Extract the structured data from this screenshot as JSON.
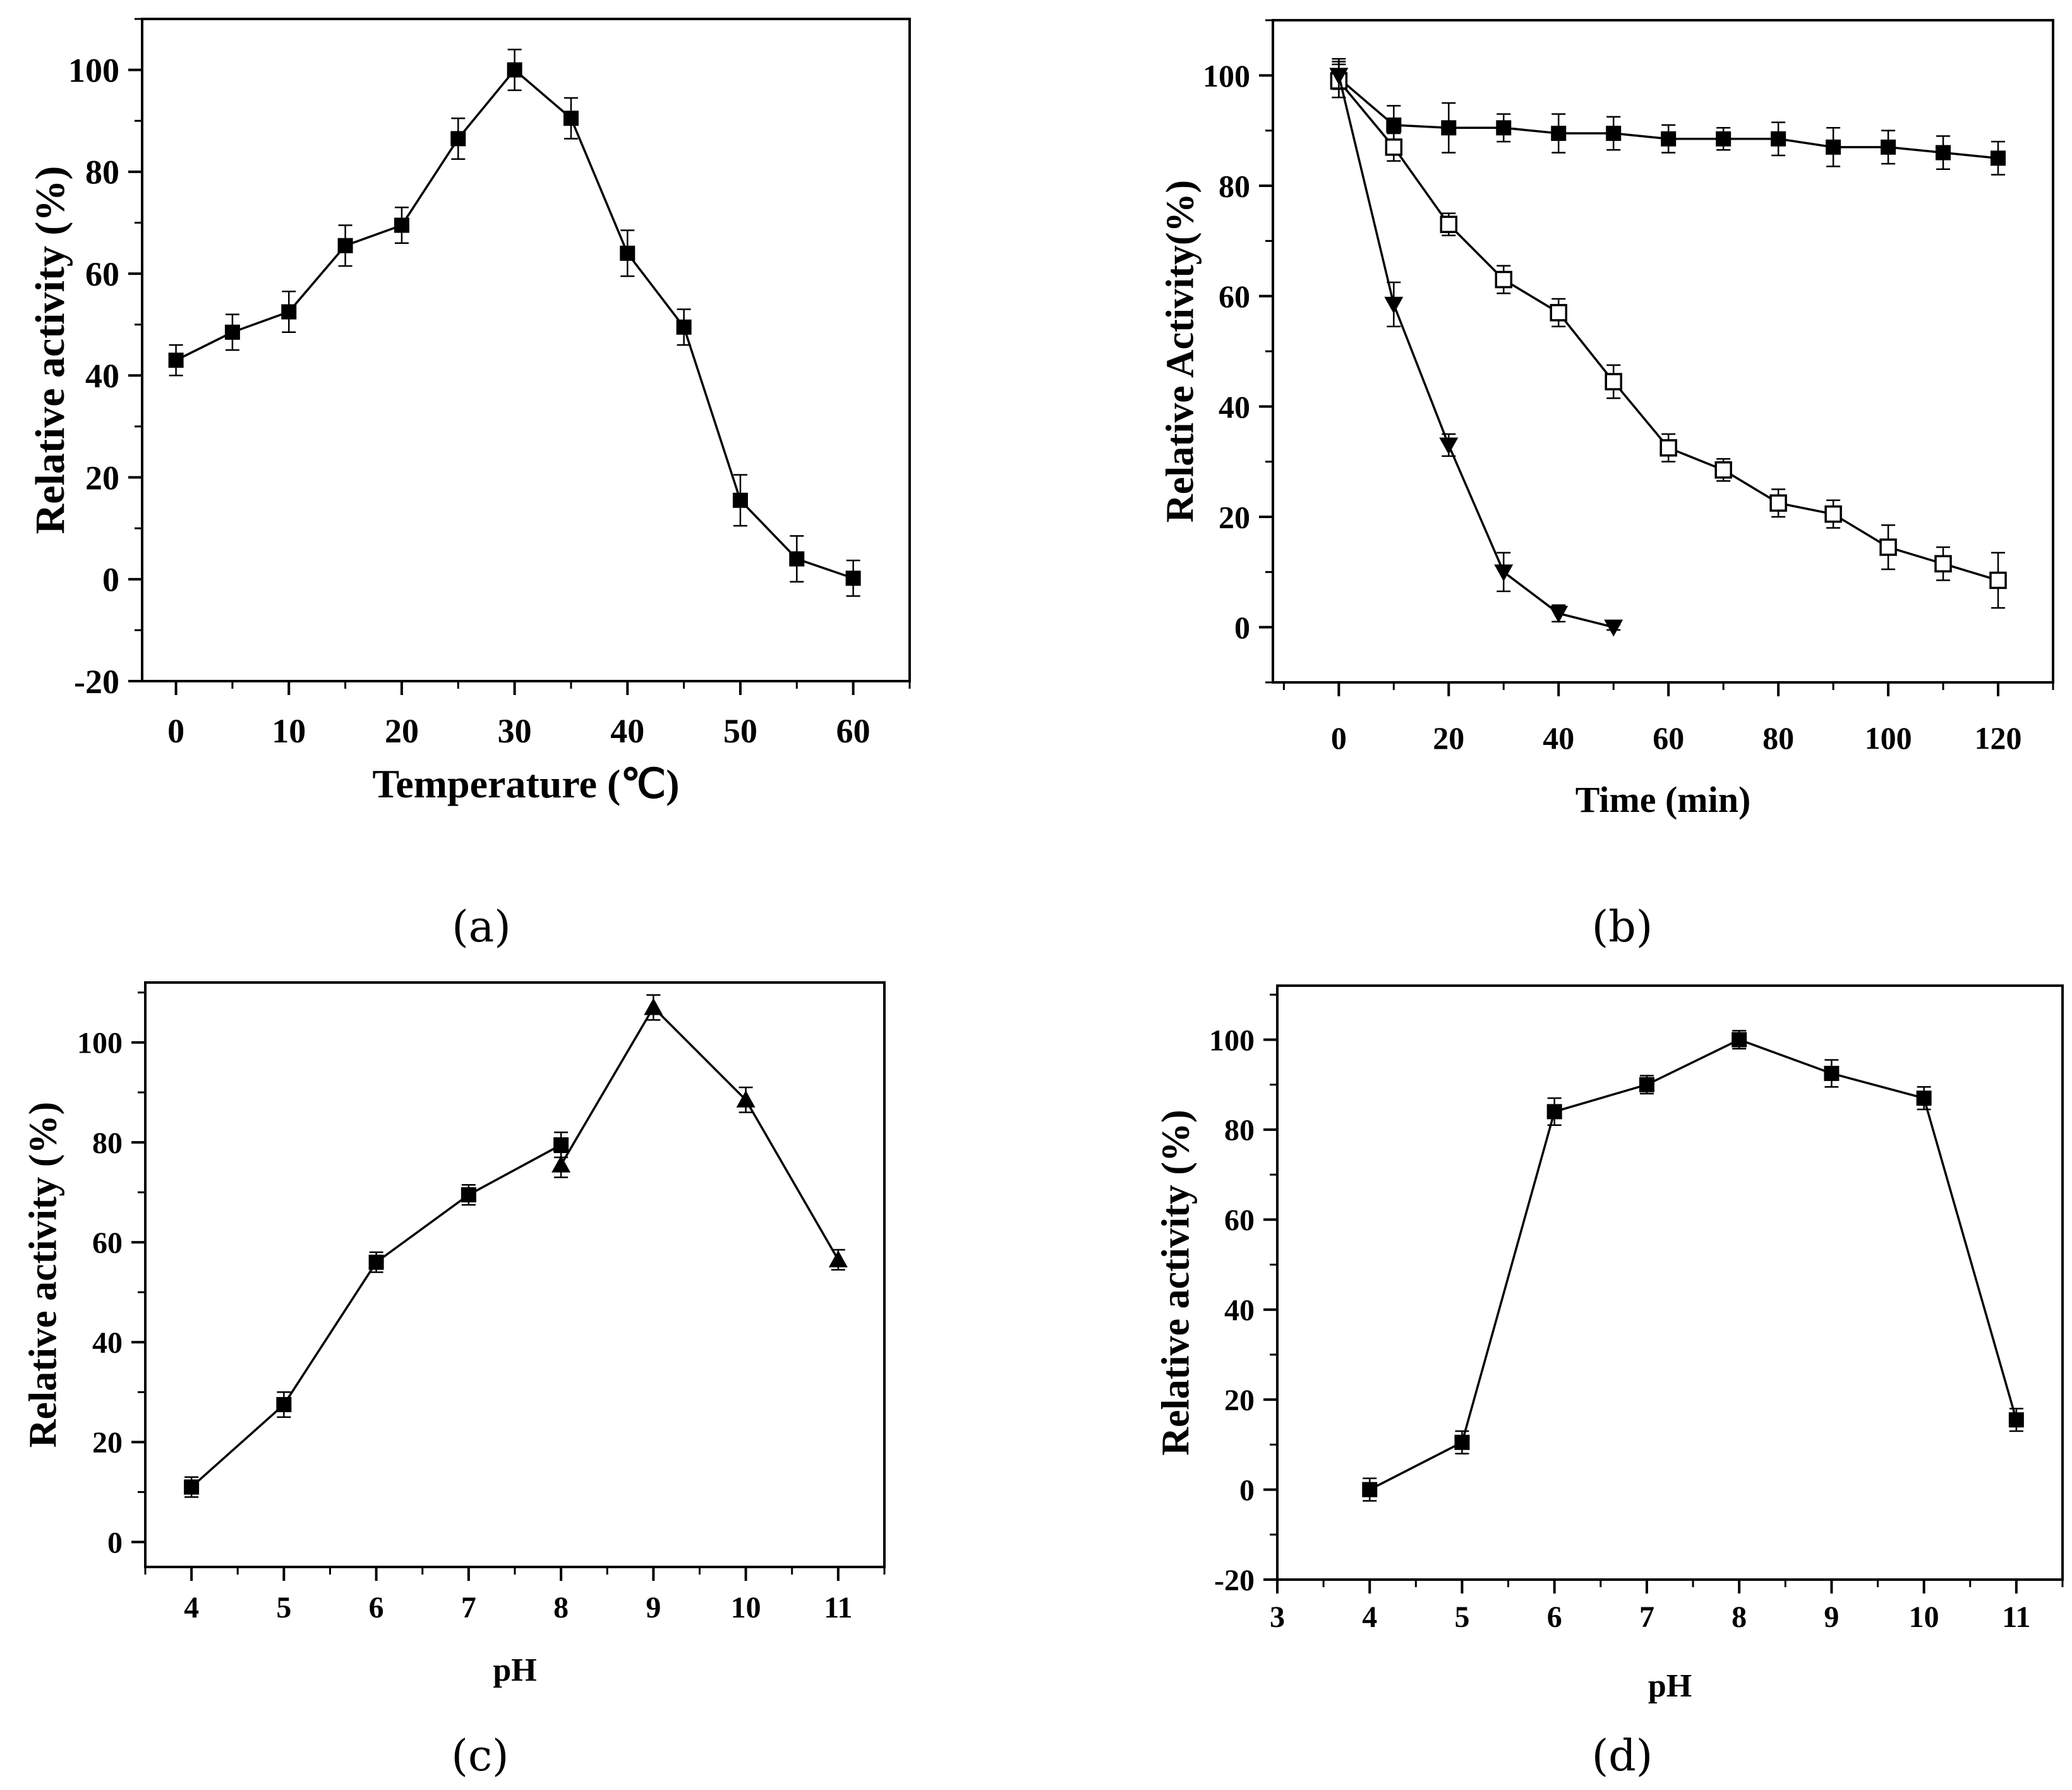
{
  "chart_data": [
    {
      "id": "a",
      "type": "line",
      "caption": "(a)",
      "xlabel": "Temperature (℃)",
      "ylabel": "Relative activity (%)",
      "xlim": [
        -3,
        65
      ],
      "ylim": [
        -20,
        110
      ],
      "xticks": [
        0,
        10,
        20,
        30,
        40,
        50,
        60
      ],
      "yticks": [
        -20,
        0,
        20,
        40,
        60,
        80,
        100
      ],
      "series": [
        {
          "name": "temperature",
          "marker": "square-filled",
          "x": [
            0,
            5,
            10,
            15,
            20,
            25,
            30,
            35,
            40,
            45,
            50,
            55,
            60
          ],
          "y": [
            43,
            48.5,
            52.5,
            65.5,
            69.5,
            86.5,
            100,
            90.5,
            64,
            49.5,
            15.5,
            4,
            0.2
          ],
          "err": [
            3,
            3.5,
            4,
            4,
            3.5,
            4,
            4,
            4,
            4.5,
            3.5,
            5,
            4.5,
            3.5
          ]
        }
      ]
    },
    {
      "id": "b",
      "type": "line",
      "caption": "(b)",
      "xlabel": "Time (min)",
      "ylabel": "Relative Activity(%)",
      "xlim": [
        -12,
        130
      ],
      "ylim": [
        -10,
        110
      ],
      "xticks": [
        0,
        20,
        40,
        60,
        80,
        100,
        120
      ],
      "yticks": [
        0,
        20,
        40,
        60,
        80,
        100
      ],
      "series": [
        {
          "name": "series-filled-square",
          "marker": "square-filled",
          "x": [
            0,
            10,
            20,
            30,
            40,
            50,
            60,
            70,
            80,
            90,
            100,
            110,
            120
          ],
          "y": [
            99.5,
            91,
            90.5,
            90.5,
            89.5,
            89.5,
            88.5,
            88.5,
            88.5,
            87,
            87,
            86,
            85
          ],
          "err": [
            3.5,
            3.5,
            4.5,
            2.5,
            3.5,
            3,
            2.5,
            2,
            3,
            3.5,
            3,
            3,
            3
          ]
        },
        {
          "name": "series-open-square",
          "marker": "square-open",
          "x": [
            0,
            10,
            20,
            30,
            40,
            50,
            60,
            70,
            80,
            90,
            100,
            110,
            120
          ],
          "y": [
            99,
            87,
            73,
            63,
            57,
            44.5,
            32.5,
            28.5,
            22.5,
            20.5,
            14.5,
            11.5,
            8.5
          ],
          "err": [
            3,
            2.5,
            2,
            2.5,
            2.5,
            3,
            2.5,
            2,
            2.5,
            2.5,
            4,
            3,
            5
          ]
        },
        {
          "name": "series-filled-triangle-down",
          "marker": "triangle-down-filled",
          "x": [
            0,
            10,
            20,
            30,
            40,
            50
          ],
          "y": [
            100,
            58.5,
            33,
            10,
            2.5,
            0
          ],
          "err": [
            2.5,
            4,
            2,
            3.5,
            1.5,
            0.5
          ]
        }
      ]
    },
    {
      "id": "c",
      "type": "line",
      "caption": "(c)",
      "xlabel": "pH",
      "ylabel": "Relative activity (%)",
      "xlim": [
        3.5,
        11.5
      ],
      "ylim": [
        -5,
        112
      ],
      "xticks": [
        4,
        5,
        6,
        7,
        8,
        9,
        10,
        11
      ],
      "yticks": [
        0,
        20,
        40,
        60,
        80,
        100
      ],
      "series": [
        {
          "name": "ph-square",
          "marker": "square-filled",
          "x": [
            4,
            5,
            6,
            7,
            8
          ],
          "y": [
            11,
            27.5,
            56,
            69.5,
            79.5
          ],
          "err": [
            2,
            2.5,
            2,
            2,
            2.5
          ]
        },
        {
          "name": "ph-triangle",
          "marker": "triangle-up-filled",
          "x": [
            8,
            9,
            10,
            11
          ],
          "y": [
            75.5,
            107,
            88.5,
            56.5
          ],
          "err": [
            2.5,
            2.5,
            2.5,
            2
          ]
        }
      ]
    },
    {
      "id": "d",
      "type": "line",
      "caption": "(d)",
      "xlabel": "pH",
      "ylabel": "Relative activity (%)",
      "xlim": [
        3,
        11.5
      ],
      "ylim": [
        -20,
        112
      ],
      "xticks": [
        3,
        4,
        5,
        6,
        7,
        8,
        9,
        10,
        11
      ],
      "yticks": [
        -20,
        0,
        20,
        40,
        60,
        80,
        100
      ],
      "series": [
        {
          "name": "ph-square",
          "marker": "square-filled",
          "x": [
            4,
            5,
            6,
            7,
            8,
            9,
            10,
            11
          ],
          "y": [
            0,
            10.5,
            84,
            90,
            100,
            92.5,
            87,
            15.5
          ],
          "err": [
            2.5,
            2.5,
            3,
            2,
            2,
            3,
            2.5,
            2.5
          ]
        }
      ]
    }
  ]
}
